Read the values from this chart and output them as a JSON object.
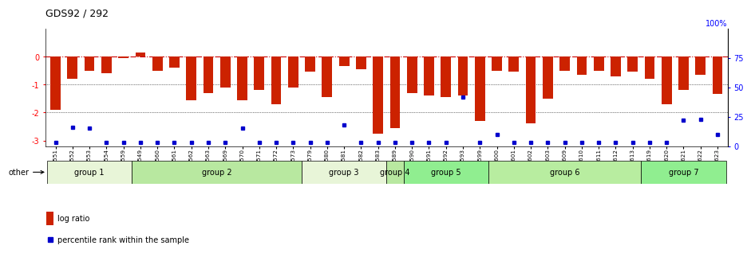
{
  "title": "GDS92 / 292",
  "samples": [
    "GSM1551",
    "GSM1552",
    "GSM1553",
    "GSM1554",
    "GSM1559",
    "GSM1549",
    "GSM1560",
    "GSM1561",
    "GSM1562",
    "GSM1563",
    "GSM1569",
    "GSM1570",
    "GSM1571",
    "GSM1572",
    "GSM1573",
    "GSM1579",
    "GSM1580",
    "GSM1581",
    "GSM1582",
    "GSM1583",
    "GSM1589",
    "GSM1590",
    "GSM1591",
    "GSM1592",
    "GSM1593",
    "GSM1599",
    "GSM1600",
    "GSM1601",
    "GSM1602",
    "GSM1603",
    "GSM1609",
    "GSM1610",
    "GSM1611",
    "GSM1612",
    "GSM1613",
    "GSM1619",
    "GSM1620",
    "GSM1621",
    "GSM1622",
    "GSM1623"
  ],
  "log_ratio": [
    -1.9,
    -0.8,
    -0.5,
    -0.6,
    -0.05,
    0.15,
    -0.5,
    -0.4,
    -1.55,
    -1.3,
    -1.1,
    -1.55,
    -1.2,
    -1.7,
    -1.1,
    -0.55,
    -1.45,
    -0.35,
    -0.45,
    -2.75,
    -2.55,
    -1.3,
    -1.4,
    -1.45,
    -1.4,
    -2.3,
    -0.5,
    -0.55,
    -2.4,
    -1.5,
    -0.5,
    -0.65,
    -0.5,
    -0.7,
    -0.55,
    -0.8,
    -1.7,
    -1.2,
    -0.65,
    -1.35
  ],
  "percentile_raw": [
    3,
    16,
    15,
    3,
    3,
    3,
    3,
    3,
    3,
    3,
    3,
    15,
    3,
    3,
    3,
    3,
    3,
    18,
    3,
    3,
    3,
    3,
    3,
    3,
    42,
    3,
    10,
    3,
    3,
    3,
    3,
    3,
    3,
    3,
    3,
    3,
    3,
    22,
    23,
    10
  ],
  "groups": [
    {
      "name": "group 1",
      "start": 0,
      "end": 4
    },
    {
      "name": "group 2",
      "start": 5,
      "end": 14
    },
    {
      "name": "group 3",
      "start": 15,
      "end": 19
    },
    {
      "name": "group 4",
      "start": 20,
      "end": 20
    },
    {
      "name": "group 5",
      "start": 21,
      "end": 25
    },
    {
      "name": "group 6",
      "start": 26,
      "end": 34
    },
    {
      "name": "group 7",
      "start": 35,
      "end": 39
    }
  ],
  "group_colors": [
    "#e8f5d8",
    "#b8e8a0",
    "#e8f5d8",
    "#b8e8a0",
    "#90ee90",
    "#b8eda0",
    "#90ee90"
  ],
  "bar_color": "#cc2200",
  "dot_color": "#0000cc",
  "zero_line_color": "#cc0000",
  "bg_color": "#ffffff",
  "ylim_left": [
    -3.2,
    1.0
  ],
  "yticks_left": [
    0,
    -1,
    -2,
    -3
  ],
  "ytick_labels_left": [
    "0",
    "-1",
    "-2",
    "-3"
  ],
  "yticks_right_pct": [
    75,
    50,
    25,
    0
  ],
  "ytick_labels_right": [
    "75",
    "50",
    "25",
    "0"
  ],
  "top_right_label": "100%"
}
